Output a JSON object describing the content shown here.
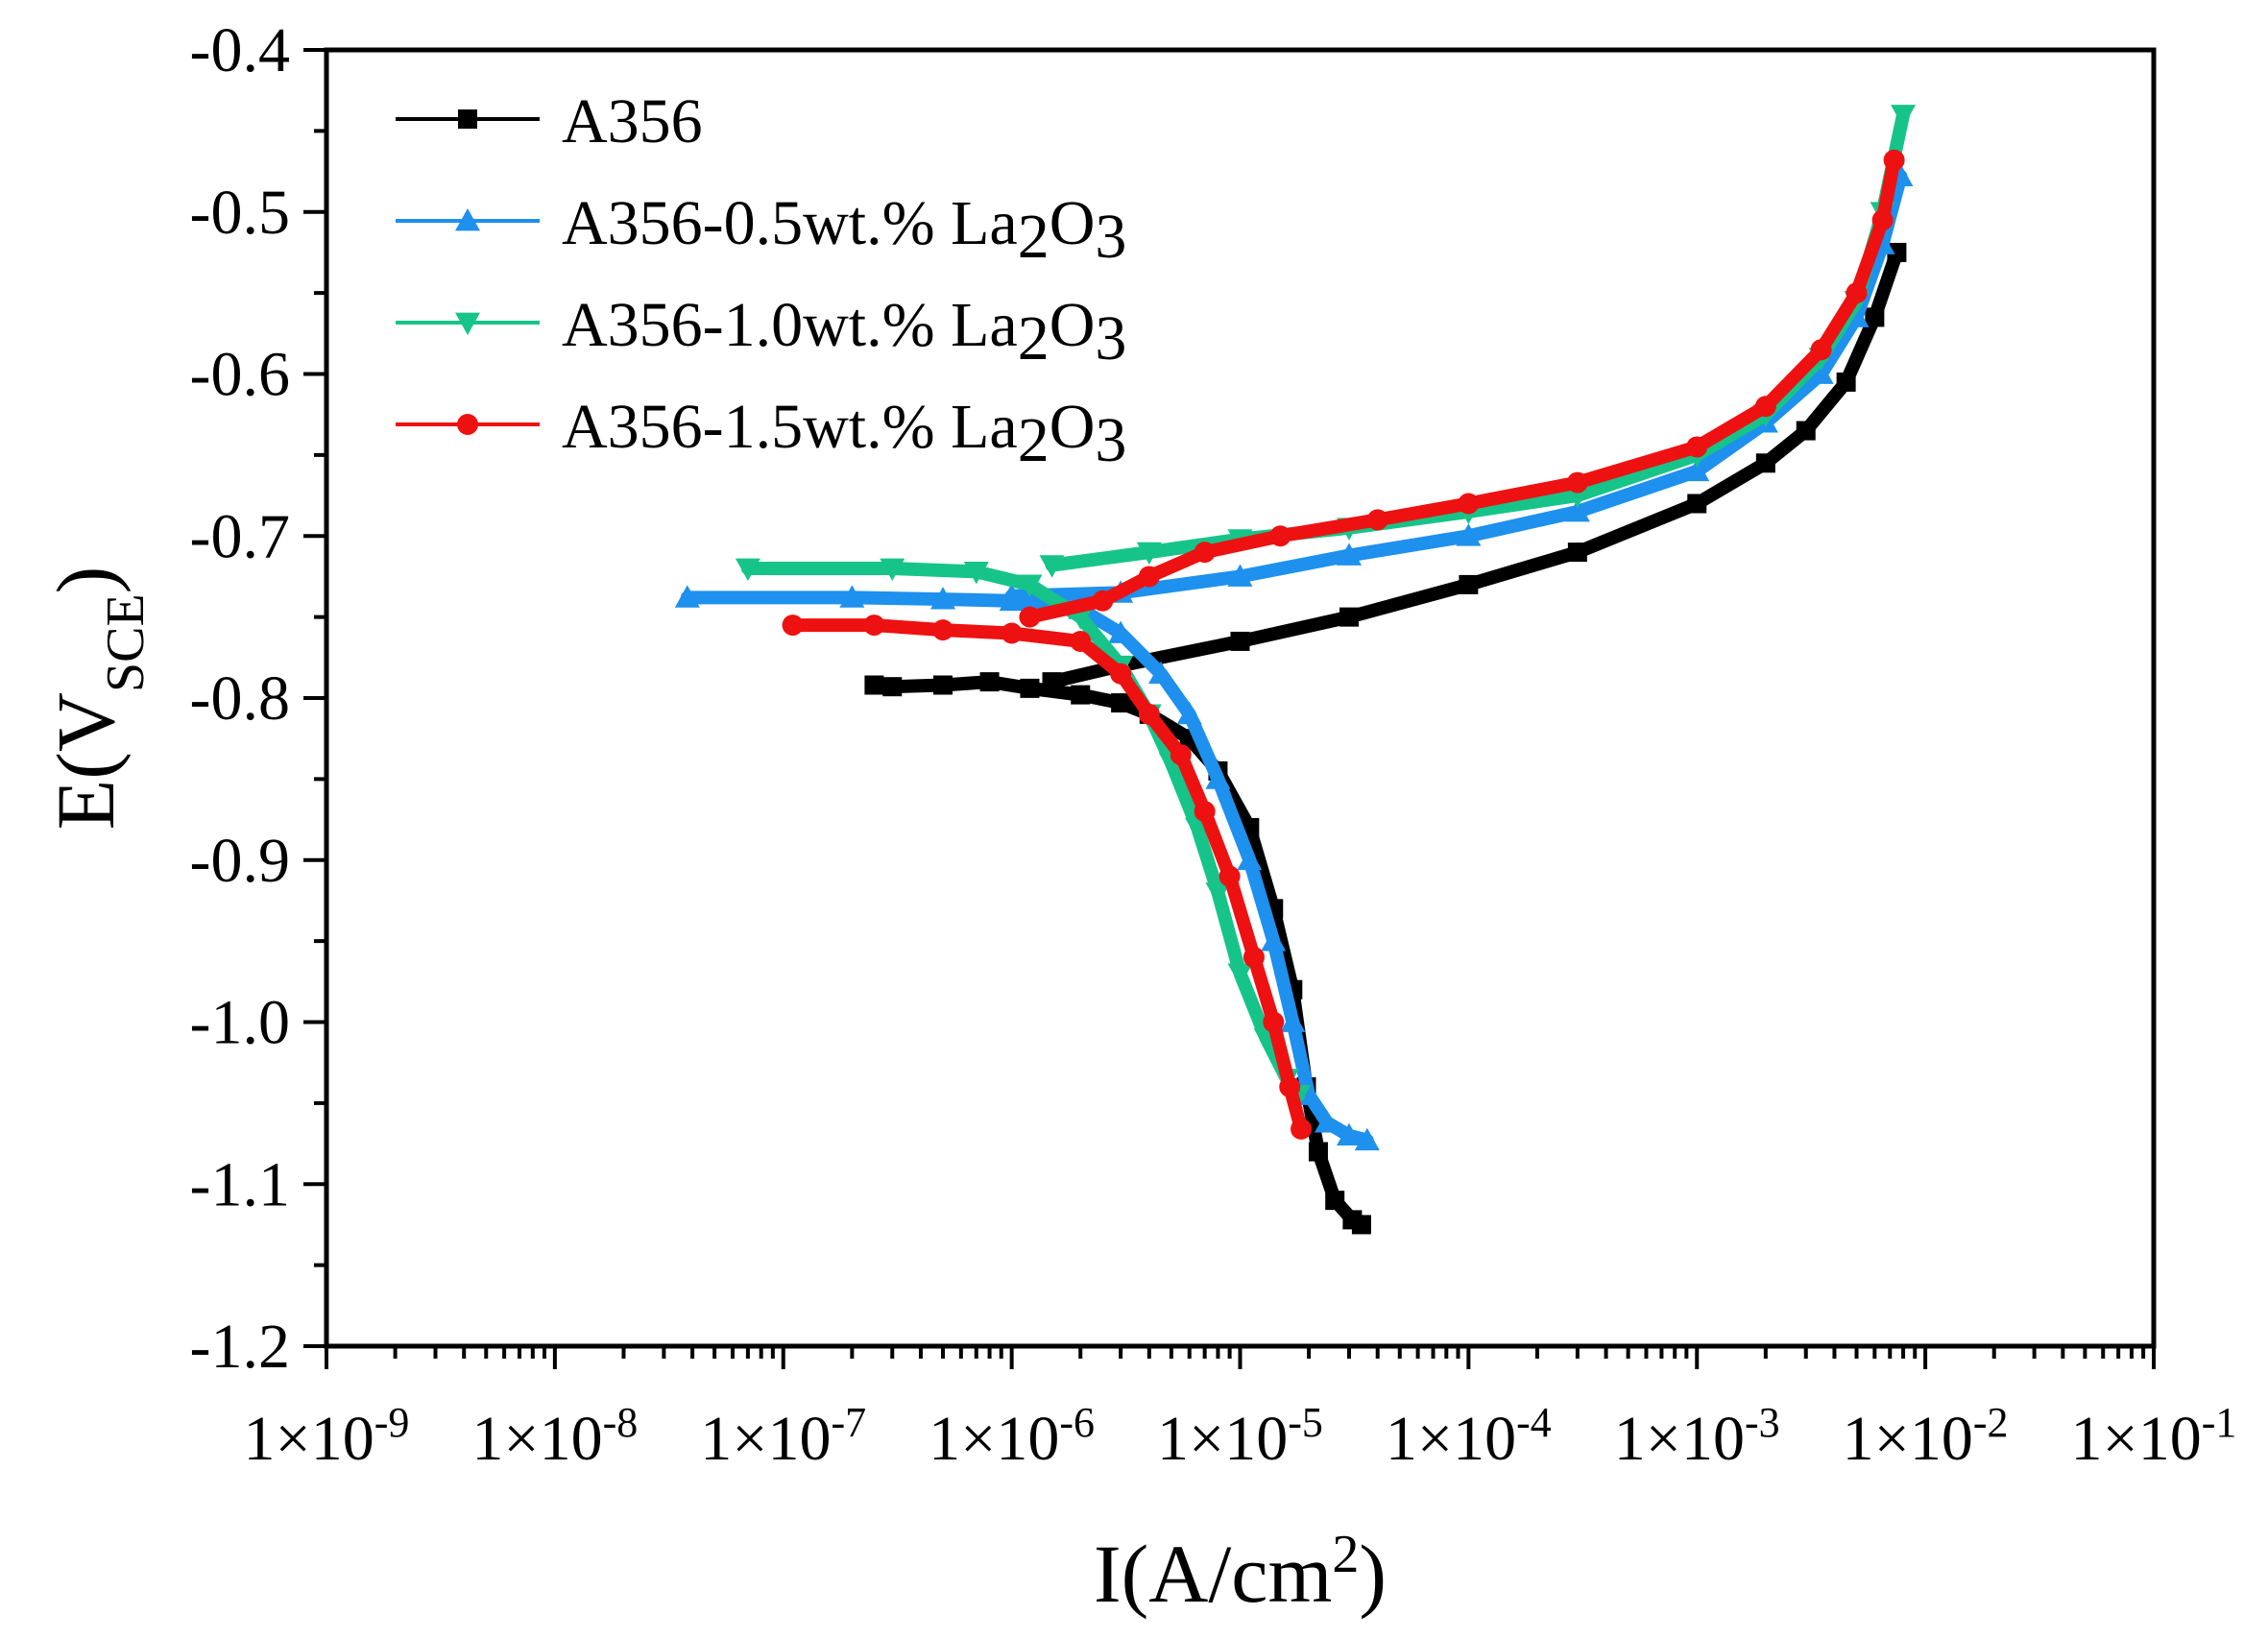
{
  "chart_data": {
    "type": "line",
    "xscale": "log",
    "xlim": [
      1e-09,
      0.1
    ],
    "ylim": [
      -1.2,
      -0.4
    ],
    "xlabel": {
      "main": "I(A/cm",
      "sup": "2",
      "close": ")"
    },
    "ylabel": {
      "main": "E(V",
      "sub": "SCE",
      "close": ")"
    },
    "x_ticks": [
      {
        "value": 1e-09,
        "mant": "1×10",
        "exp": "-9"
      },
      {
        "value": 1e-08,
        "mant": "1×10",
        "exp": "-8"
      },
      {
        "value": 1e-07,
        "mant": "1×10",
        "exp": "-7"
      },
      {
        "value": 1e-06,
        "mant": "1×10",
        "exp": "-6"
      },
      {
        "value": 1e-05,
        "mant": "1×10",
        "exp": "-5"
      },
      {
        "value": 0.0001,
        "mant": "1×10",
        "exp": "-4"
      },
      {
        "value": 0.001,
        "mant": "1×10",
        "exp": "-3"
      },
      {
        "value": 0.01,
        "mant": "1×10",
        "exp": "-2"
      },
      {
        "value": 0.1,
        "mant": "1×10",
        "exp": "-1"
      }
    ],
    "y_ticks": [
      {
        "value": -0.4,
        "label": "-0.4"
      },
      {
        "value": -0.5,
        "label": "-0.5"
      },
      {
        "value": -0.6,
        "label": "-0.6"
      },
      {
        "value": -0.7,
        "label": "-0.7"
      },
      {
        "value": -0.8,
        "label": "-0.8"
      },
      {
        "value": -0.9,
        "label": "-0.9"
      },
      {
        "value": -1.0,
        "label": "-1.0"
      },
      {
        "value": -1.1,
        "label": "-1.1"
      },
      {
        "value": -1.2,
        "label": "-1.2"
      }
    ],
    "legend_position": "top-left",
    "series": [
      {
        "name": "A356",
        "legend": {
          "main": "A356",
          "sub1": "",
          "mid": "",
          "sub2": ""
        },
        "color": "#000000",
        "marker": "square",
        "cathodic": [
          [
            2.5e-07,
            -0.792
          ],
          [
            3e-07,
            -0.793
          ],
          [
            5e-07,
            -0.792
          ],
          [
            8e-07,
            -0.79
          ],
          [
            1.2e-06,
            -0.794
          ],
          [
            2e-06,
            -0.798
          ],
          [
            3e-06,
            -0.803
          ],
          [
            4e-06,
            -0.81
          ],
          [
            6e-06,
            -0.825
          ],
          [
            8e-06,
            -0.845
          ],
          [
            1.1e-05,
            -0.88
          ],
          [
            1.4e-05,
            -0.93
          ],
          [
            1.7e-05,
            -0.98
          ],
          [
            1.95e-05,
            -1.04
          ],
          [
            2.2e-05,
            -1.08
          ],
          [
            2.6e-05,
            -1.11
          ],
          [
            3.1e-05,
            -1.122
          ],
          [
            3.4e-05,
            -1.125
          ]
        ],
        "anodic": [
          [
            1.5e-06,
            -0.79
          ],
          [
            3e-06,
            -0.78
          ],
          [
            1e-05,
            -0.765
          ],
          [
            3e-05,
            -0.75
          ],
          [
            0.0001,
            -0.73
          ],
          [
            0.0003,
            -0.71
          ],
          [
            0.001,
            -0.68
          ],
          [
            0.002,
            -0.655
          ],
          [
            0.003,
            -0.635
          ],
          [
            0.0045,
            -0.605
          ],
          [
            0.006,
            -0.565
          ],
          [
            0.0075,
            -0.525
          ]
        ]
      },
      {
        "name": "A356-0.5wt.% La2O3",
        "legend": {
          "main": "A356-0.5wt.% La",
          "sub1": "2",
          "mid": "O",
          "sub2": "3"
        },
        "color": "#1e90ee",
        "marker": "triangle-up",
        "cathodic": [
          [
            3.8e-08,
            -0.738
          ],
          [
            2e-07,
            -0.738
          ],
          [
            5e-07,
            -0.739
          ],
          [
            1e-06,
            -0.74
          ],
          [
            2e-06,
            -0.745
          ],
          [
            3e-06,
            -0.76
          ],
          [
            4.5e-06,
            -0.785
          ],
          [
            6e-06,
            -0.81
          ],
          [
            8e-06,
            -0.85
          ],
          [
            1.1e-05,
            -0.9
          ],
          [
            1.4e-05,
            -0.95
          ],
          [
            1.7e-05,
            -1.0
          ],
          [
            2e-05,
            -1.045
          ],
          [
            2.4e-05,
            -1.062
          ],
          [
            3e-05,
            -1.07
          ],
          [
            3.6e-05,
            -1.073
          ]
        ],
        "anodic": [
          [
            1e-06,
            -0.737
          ],
          [
            3e-06,
            -0.735
          ],
          [
            1e-05,
            -0.725
          ],
          [
            3e-05,
            -0.712
          ],
          [
            0.0001,
            -0.7
          ],
          [
            0.0003,
            -0.685
          ],
          [
            0.001,
            -0.66
          ],
          [
            0.002,
            -0.63
          ],
          [
            0.0035,
            -0.6
          ],
          [
            0.005,
            -0.565
          ],
          [
            0.0065,
            -0.52
          ],
          [
            0.0078,
            -0.478
          ]
        ]
      },
      {
        "name": "A356-1.0wt.% La2O3",
        "legend": {
          "main": "A356-1.0wt.% La",
          "sub1": "2",
          "mid": "O",
          "sub2": "3"
        },
        "color": "#16c489",
        "marker": "triangle-down",
        "cathodic": [
          [
            7e-08,
            -0.72
          ],
          [
            3e-07,
            -0.72
          ],
          [
            7e-07,
            -0.722
          ],
          [
            1.2e-06,
            -0.73
          ],
          [
            2e-06,
            -0.75
          ],
          [
            3e-06,
            -0.78
          ],
          [
            4e-06,
            -0.81
          ],
          [
            5e-06,
            -0.84
          ],
          [
            6.5e-06,
            -0.88
          ],
          [
            8e-06,
            -0.92
          ],
          [
            1e-05,
            -0.97
          ],
          [
            1.3e-05,
            -1.01
          ],
          [
            1.6e-05,
            -1.035
          ],
          [
            1.8e-05,
            -1.045
          ]
        ],
        "anodic": [
          [
            1.5e-06,
            -0.718
          ],
          [
            4e-06,
            -0.71
          ],
          [
            1e-05,
            -0.702
          ],
          [
            3e-05,
            -0.695
          ],
          [
            0.0001,
            -0.685
          ],
          [
            0.0003,
            -0.675
          ],
          [
            0.001,
            -0.65
          ],
          [
            0.002,
            -0.625
          ],
          [
            0.0035,
            -0.59
          ],
          [
            0.005,
            -0.555
          ],
          [
            0.0065,
            -0.5
          ],
          [
            0.008,
            -0.44
          ]
        ]
      },
      {
        "name": "A356-1.5wt.% La2O3",
        "legend": {
          "main": "A356-1.5wt.% La",
          "sub1": "2",
          "mid": "O",
          "sub2": "3"
        },
        "color": "#ee1111",
        "marker": "circle",
        "cathodic": [
          [
            1.1e-07,
            -0.755
          ],
          [
            2.5e-07,
            -0.755
          ],
          [
            5e-07,
            -0.758
          ],
          [
            1e-06,
            -0.76
          ],
          [
            2e-06,
            -0.765
          ],
          [
            3e-06,
            -0.785
          ],
          [
            4e-06,
            -0.81
          ],
          [
            5.5e-06,
            -0.835
          ],
          [
            7e-06,
            -0.87
          ],
          [
            9e-06,
            -0.91
          ],
          [
            1.15e-05,
            -0.96
          ],
          [
            1.4e-05,
            -1.0
          ],
          [
            1.65e-05,
            -1.04
          ],
          [
            1.85e-05,
            -1.066
          ]
        ],
        "anodic": [
          [
            1.2e-06,
            -0.75
          ],
          [
            2.5e-06,
            -0.74
          ],
          [
            4e-06,
            -0.725
          ],
          [
            7e-06,
            -0.71
          ],
          [
            1.5e-05,
            -0.7
          ],
          [
            4e-05,
            -0.69
          ],
          [
            0.0001,
            -0.68
          ],
          [
            0.0003,
            -0.667
          ],
          [
            0.001,
            -0.645
          ],
          [
            0.002,
            -0.62
          ],
          [
            0.0035,
            -0.585
          ],
          [
            0.005,
            -0.55
          ],
          [
            0.0065,
            -0.505
          ],
          [
            0.0073,
            -0.468
          ]
        ]
      }
    ]
  }
}
